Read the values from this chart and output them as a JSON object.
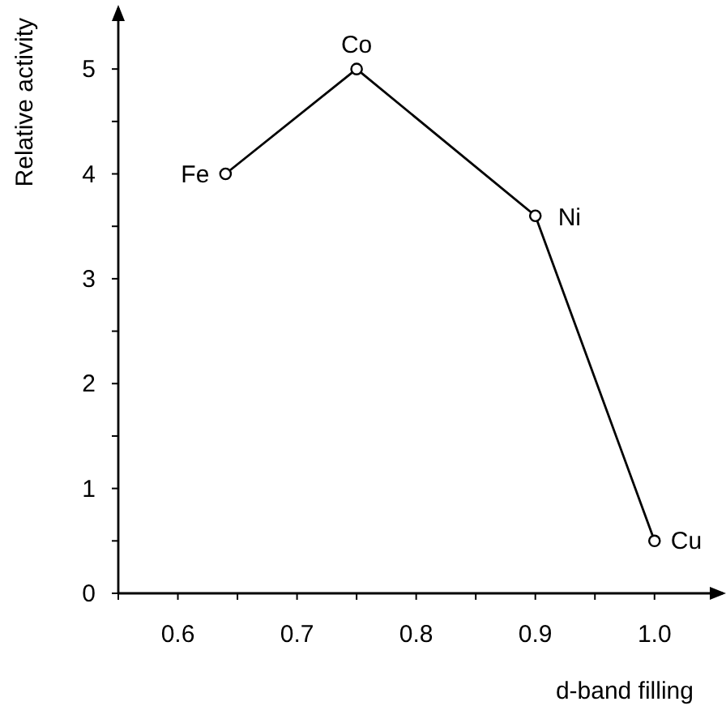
{
  "chart_data": {
    "type": "line",
    "xlabel": "d-band filling",
    "ylabel": "Relative activity",
    "x": [
      0.64,
      0.75,
      0.9,
      1.0
    ],
    "series": [
      {
        "color": "#000000",
        "values": [
          4,
          5,
          3.6,
          0.5
        ]
      }
    ],
    "xlim": [
      0.55,
      1.06
    ],
    "ylim": [
      0,
      5.55
    ],
    "xticks": [
      {
        "value": 0.55,
        "label": null
      },
      0.6,
      {
        "value": 0.65,
        "label": null
      },
      0.7,
      {
        "value": 0.75,
        "label": null
      },
      0.8,
      {
        "value": 0.85,
        "label": null
      },
      0.9,
      {
        "value": 0.95,
        "label": null
      },
      {
        "value": 1.0,
        "label": "1.0"
      }
    ],
    "yticks": [
      0,
      {
        "value": 0.5,
        "label": null
      },
      1,
      {
        "value": 1.5,
        "label": null
      },
      2,
      {
        "value": 2.5,
        "label": null
      },
      3,
      {
        "value": 3.5,
        "label": null
      },
      4,
      {
        "value": 4.5,
        "label": null
      },
      5
    ],
    "annotations": [
      {
        "text": "Fe",
        "x": 0.64,
        "y": 4
      },
      {
        "text": "Co",
        "x": 0.75,
        "y": 5
      },
      {
        "text": "Ni",
        "x": 0.9,
        "y": 3.6
      },
      {
        "text": "Cu",
        "x": 1.0,
        "y": 0.5
      }
    ],
    "marker": "circle",
    "line_style": "solid",
    "grid": false
  }
}
